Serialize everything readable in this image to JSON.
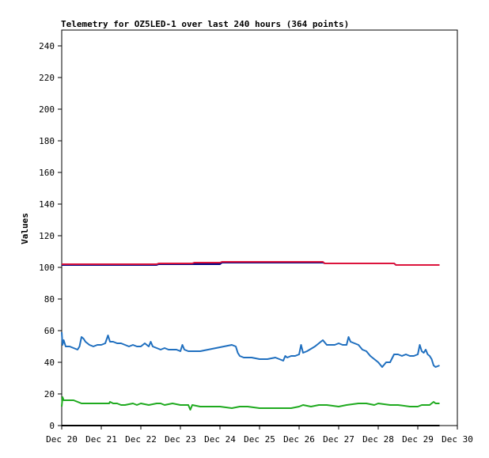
{
  "chart_data": {
    "type": "line",
    "title": "Telemetry for OZ5LED-1 over last 240 hours (364 points)",
    "xlabel": "",
    "ylabel": "Values",
    "xlim": [
      "2018-12-20",
      "2018-12-30"
    ],
    "ylim": [
      0,
      250
    ],
    "yticks": [
      0,
      20,
      40,
      60,
      80,
      100,
      120,
      140,
      160,
      180,
      200,
      220,
      240
    ],
    "xticks": [
      "Dec 20",
      "Dec 21",
      "Dec 22",
      "Dec 23",
      "Dec 24",
      "Dec 25",
      "Dec 26",
      "Dec 27",
      "Dec 28",
      "Dec 29",
      "Dec 30"
    ],
    "grid": false,
    "legend": "none",
    "series": [
      {
        "color": "#000080",
        "x": [
          0.0,
          2.4,
          2.45,
          4.0,
          4.05,
          6.6,
          6.65,
          8.4,
          8.45,
          9.55
        ],
        "y": [
          101.5,
          101.5,
          102.0,
          102.0,
          103.0,
          103.0,
          102.5,
          102.5,
          101.5,
          101.5
        ]
      },
      {
        "color": "#dc143c",
        "x": [
          0.0,
          2.4,
          2.45,
          3.3,
          3.35,
          4.0,
          4.05,
          6.6,
          6.65,
          8.4,
          8.45,
          9.55
        ],
        "y": [
          102.0,
          102.0,
          102.5,
          102.5,
          103.0,
          103.0,
          103.5,
          103.5,
          102.5,
          102.5,
          101.5,
          101.5
        ]
      },
      {
        "color": "#1f6fbf",
        "x": [
          0.0,
          0.02,
          0.05,
          0.1,
          0.2,
          0.3,
          0.4,
          0.45,
          0.5,
          0.55,
          0.6,
          0.7,
          0.8,
          0.9,
          1.0,
          1.1,
          1.17,
          1.22,
          1.3,
          1.4,
          1.5,
          1.6,
          1.7,
          1.8,
          1.9,
          2.0,
          2.1,
          2.2,
          2.25,
          2.3,
          2.4,
          2.5,
          2.6,
          2.7,
          2.8,
          2.9,
          3.0,
          3.05,
          3.1,
          3.2,
          3.3,
          3.5,
          3.7,
          3.9,
          4.1,
          4.3,
          4.4,
          4.45,
          4.5,
          4.6,
          4.8,
          5.0,
          5.2,
          5.4,
          5.6,
          5.65,
          5.7,
          5.8,
          5.9,
          6.0,
          6.05,
          6.1,
          6.2,
          6.4,
          6.6,
          6.7,
          6.8,
          6.9,
          7.0,
          7.1,
          7.2,
          7.25,
          7.3,
          7.4,
          7.5,
          7.6,
          7.7,
          7.8,
          7.9,
          8.0,
          8.1,
          8.2,
          8.3,
          8.4,
          8.5,
          8.6,
          8.7,
          8.8,
          8.9,
          9.0,
          9.05,
          9.1,
          9.15,
          9.2,
          9.25,
          9.3,
          9.35,
          9.4,
          9.45,
          9.55
        ],
        "y": [
          59,
          51,
          54,
          50,
          50,
          49,
          48,
          50,
          56,
          55,
          53,
          51,
          50,
          51,
          51,
          52,
          57,
          53,
          53,
          52,
          52,
          51,
          50,
          51,
          50,
          50,
          52,
          50,
          53,
          50,
          49,
          48,
          49,
          48,
          48,
          48,
          47,
          51,
          48,
          47,
          47,
          47,
          48,
          49,
          50,
          51,
          50,
          46,
          44,
          43,
          43,
          42,
          42,
          43,
          41,
          44,
          43,
          44,
          44,
          45,
          51,
          46,
          47,
          50,
          54,
          51,
          51,
          51,
          52,
          51,
          51,
          56,
          53,
          52,
          51,
          48,
          47,
          44,
          42,
          40,
          37,
          40,
          40,
          45,
          45,
          44,
          45,
          44,
          44,
          45,
          51,
          47,
          46,
          48,
          45,
          44,
          42,
          38,
          37,
          38
        ]
      },
      {
        "color": "#1faa1f",
        "x": [
          0.0,
          0.02,
          0.05,
          0.1,
          0.2,
          0.3,
          0.5,
          0.6,
          0.8,
          1.0,
          1.2,
          1.22,
          1.3,
          1.4,
          1.5,
          1.6,
          1.8,
          1.9,
          2.0,
          2.2,
          2.4,
          2.5,
          2.6,
          2.8,
          3.0,
          3.2,
          3.25,
          3.3,
          3.5,
          3.7,
          4.0,
          4.3,
          4.5,
          4.7,
          5.0,
          5.5,
          5.8,
          6.0,
          6.1,
          6.3,
          6.5,
          6.7,
          7.0,
          7.2,
          7.5,
          7.7,
          7.9,
          8.0,
          8.3,
          8.5,
          8.8,
          9.0,
          9.1,
          9.3,
          9.4,
          9.45,
          9.55
        ],
        "y": [
          12,
          18,
          16,
          16,
          16,
          16,
          14,
          14,
          14,
          14,
          14,
          15,
          14,
          14,
          13,
          13,
          14,
          13,
          14,
          13,
          14,
          14,
          13,
          14,
          13,
          13,
          10,
          13,
          12,
          12,
          12,
          11,
          12,
          12,
          11,
          11,
          11,
          12,
          13,
          12,
          13,
          13,
          12,
          13,
          14,
          14,
          13,
          14,
          13,
          13,
          12,
          12,
          13,
          13,
          15,
          14,
          14
        ]
      },
      {
        "color": "#000000",
        "x": [
          0.0,
          9.55
        ],
        "y": [
          0,
          0
        ]
      }
    ]
  }
}
